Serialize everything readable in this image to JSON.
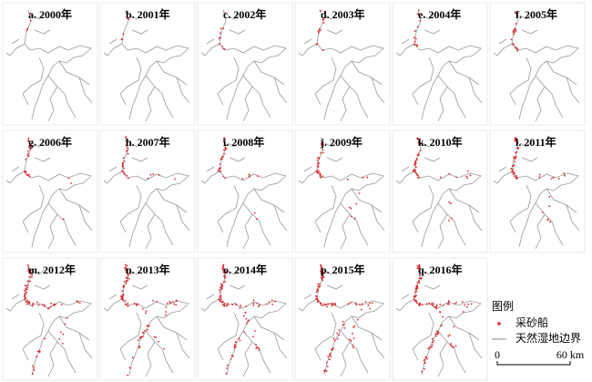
{
  "panels": [
    {
      "label": "a. 2000年"
    },
    {
      "label": "b. 2001年"
    },
    {
      "label": "c. 2002年"
    },
    {
      "label": "d. 2003年"
    },
    {
      "label": "e. 2004年"
    },
    {
      "label": "f. 2005年"
    },
    {
      "label": "g. 2006年"
    },
    {
      "label": "h. 2007年"
    },
    {
      "label": "i. 2008年"
    },
    {
      "label": "j. 2009年"
    },
    {
      "label": "k. 2010年"
    },
    {
      "label": "l. 2011年"
    },
    {
      "label": "m. 2012年"
    },
    {
      "label": "n. 2013年"
    },
    {
      "label": "o. 2014年"
    },
    {
      "label": "p. 2015年"
    },
    {
      "label": "q. 2016年"
    }
  ],
  "legend": {
    "title": "图例",
    "items": [
      "采砂船",
      "天然湿地边界"
    ]
  },
  "scale_bar": {
    "start": "0",
    "end": "60 km"
  }
}
